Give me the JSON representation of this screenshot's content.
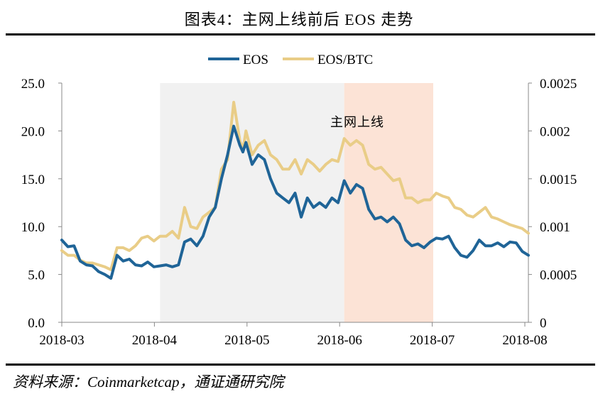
{
  "title": "图表4：主网上线前后 EOS 走势",
  "source": "资料来源：Coinmarketcap，通证通研究院",
  "colors": {
    "eos": "#1f6497",
    "eos_btc": "#e9cd87",
    "pre_shade": "#f1f1f1",
    "mainnet_shade": "#fce3d6"
  },
  "chart_data": {
    "type": "line",
    "legend": [
      "EOS",
      "EOS/BTC"
    ],
    "legend_position": "top-center",
    "annotation": "主网上线",
    "x_ticks": [
      "2018-03",
      "2018-04",
      "2018-05",
      "2018-06",
      "2018-07",
      "2018-08"
    ],
    "x_range": [
      0,
      152
    ],
    "y_left": {
      "min": 0,
      "max": 25,
      "ticks": [
        "0.0",
        "5.0",
        "10.0",
        "15.0",
        "20.0",
        "25.0"
      ]
    },
    "y_right": {
      "min": 0,
      "max": 0.0025,
      "ticks": [
        "0",
        "0.0005",
        "0.001",
        "0.0015",
        "0.002",
        "0.0025"
      ]
    },
    "shaded_regions": [
      {
        "name": "before-mainnet",
        "from": 32,
        "to": 92
      },
      {
        "name": "mainnet-launch",
        "from": 92,
        "to": 121
      }
    ],
    "series": [
      {
        "name": "EOS",
        "axis": "left",
        "x": [
          0,
          2,
          4,
          6,
          8,
          10,
          12,
          14,
          16,
          18,
          20,
          22,
          24,
          26,
          28,
          30,
          32,
          34,
          36,
          38,
          40,
          42,
          44,
          46,
          48,
          50,
          52,
          54,
          56,
          58,
          59,
          60,
          62,
          64,
          66,
          68,
          70,
          72,
          74,
          76,
          78,
          80,
          82,
          84,
          86,
          88,
          90,
          92,
          94,
          96,
          98,
          100,
          102,
          104,
          106,
          108,
          110,
          112,
          114,
          116,
          118,
          120,
          122,
          124,
          126,
          128,
          130,
          132,
          134,
          136,
          138,
          140,
          142,
          144,
          146,
          148,
          150,
          152
        ],
        "values": [
          8.6,
          7.9,
          8.0,
          6.4,
          6.0,
          5.9,
          5.3,
          5.0,
          4.6,
          7.0,
          6.4,
          6.6,
          6.0,
          5.9,
          6.3,
          5.8,
          5.9,
          6.0,
          5.8,
          6.0,
          8.4,
          8.7,
          8.0,
          9.0,
          11.0,
          12.0,
          15.0,
          17.5,
          20.5,
          18.5,
          17.8,
          18.8,
          16.5,
          17.5,
          17.0,
          15.0,
          13.5,
          13.0,
          12.5,
          13.5,
          11.0,
          13.0,
          12.0,
          12.5,
          12.0,
          13.0,
          12.5,
          14.8,
          13.5,
          14.4,
          14.0,
          11.8,
          10.8,
          11.0,
          10.5,
          11.0,
          10.3,
          8.6,
          8.0,
          8.2,
          7.8,
          8.4,
          8.8,
          8.7,
          9.0,
          7.8,
          7.0,
          6.8,
          7.5,
          8.6,
          8.0,
          8.0,
          8.3,
          7.9,
          8.4,
          8.3,
          7.4,
          7.0
        ]
      },
      {
        "name": "EOS/BTC",
        "axis": "right",
        "x": [
          0,
          2,
          4,
          6,
          8,
          10,
          12,
          14,
          16,
          18,
          20,
          22,
          24,
          26,
          28,
          30,
          32,
          34,
          36,
          38,
          40,
          42,
          44,
          46,
          48,
          50,
          52,
          54,
          56,
          58,
          59,
          60,
          62,
          64,
          66,
          68,
          70,
          72,
          74,
          76,
          78,
          80,
          82,
          84,
          86,
          88,
          90,
          92,
          94,
          96,
          98,
          100,
          102,
          104,
          106,
          108,
          110,
          112,
          114,
          116,
          118,
          120,
          122,
          124,
          126,
          128,
          130,
          132,
          134,
          136,
          138,
          140,
          142,
          144,
          146,
          148,
          150,
          152
        ],
        "values": [
          0.00075,
          0.0007,
          0.0007,
          0.00065,
          0.00062,
          0.00062,
          0.0006,
          0.00058,
          0.00055,
          0.00078,
          0.00078,
          0.00075,
          0.0008,
          0.00088,
          0.0009,
          0.00085,
          0.0009,
          0.0009,
          0.00095,
          0.00088,
          0.0012,
          0.001,
          0.00098,
          0.0011,
          0.00115,
          0.0012,
          0.0016,
          0.0017,
          0.0023,
          0.0019,
          0.0018,
          0.002,
          0.00175,
          0.00185,
          0.0019,
          0.00175,
          0.0017,
          0.0016,
          0.0016,
          0.0017,
          0.00155,
          0.0017,
          0.00165,
          0.00158,
          0.00165,
          0.0017,
          0.00168,
          0.00192,
          0.00185,
          0.0019,
          0.00185,
          0.00165,
          0.0016,
          0.00162,
          0.00155,
          0.00148,
          0.0015,
          0.0013,
          0.0013,
          0.00125,
          0.00128,
          0.00128,
          0.00135,
          0.00132,
          0.0013,
          0.0012,
          0.00118,
          0.00112,
          0.0011,
          0.00115,
          0.0012,
          0.0011,
          0.00108,
          0.00105,
          0.00102,
          0.001,
          0.00098,
          0.00093
        ]
      }
    ]
  }
}
